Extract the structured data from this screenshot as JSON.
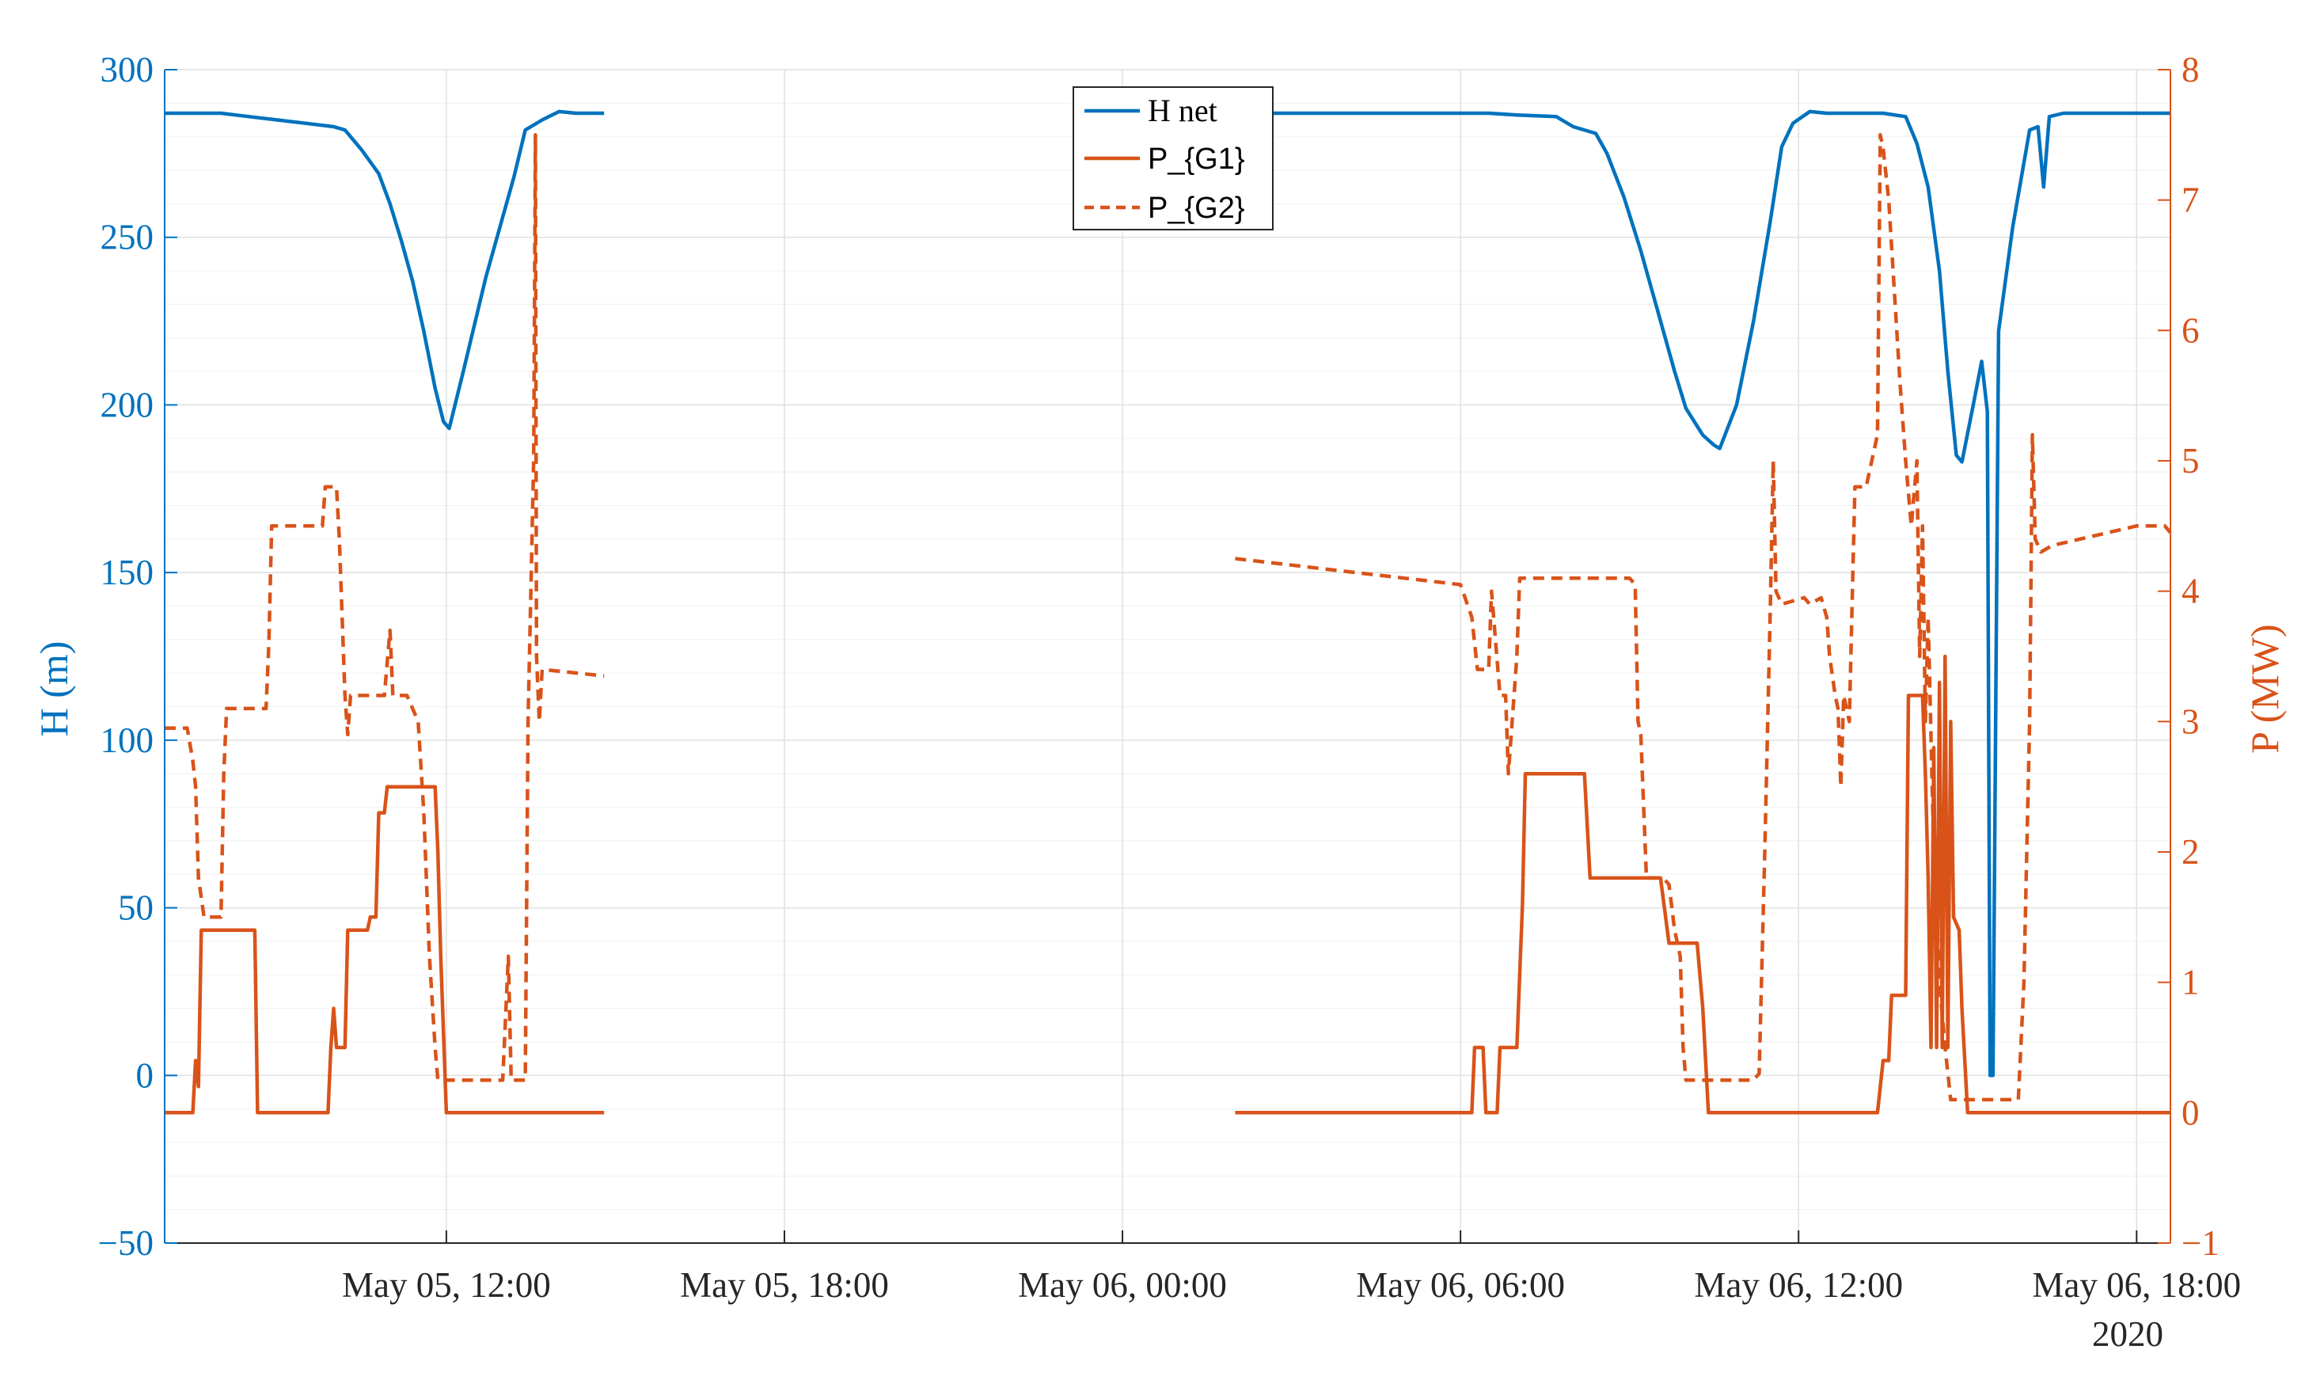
{
  "chart_data": {
    "type": "line",
    "ylabel_left": "H (m)",
    "ylabel_right": "P (MW)",
    "x_year_label": "2020",
    "grid": true,
    "legend_position": "top-center",
    "colors": {
      "left": "#0072BD",
      "right": "#D95319",
      "x": "#262626"
    },
    "xlim": [
      "2020-05-05 07:00",
      "2020-05-06 18:00"
    ],
    "ylim_left": [
      -50,
      300
    ],
    "ylim_right": [
      -1,
      8
    ],
    "x_ticks": [
      "May 05, 12:00",
      "May 05, 18:00",
      "May 06, 00:00",
      "May 06, 06:00",
      "May 06, 12:00",
      "May 06, 18:00"
    ],
    "x_tick_hours": [
      5,
      11,
      17,
      23,
      29,
      35
    ],
    "y_ticks_left": [
      "300",
      "250",
      "200",
      "150",
      "100",
      "50",
      "0",
      "−50"
    ],
    "y_ticks_left_values": [
      300,
      250,
      200,
      150,
      100,
      50,
      0,
      -50
    ],
    "y_ticks_right": [
      "8",
      "7",
      "6",
      "5",
      "4",
      "3",
      "2",
      "1",
      "0",
      "−1"
    ],
    "y_ticks_right_values": [
      8,
      7,
      6,
      5,
      4,
      3,
      2,
      1,
      0,
      -1
    ],
    "series": [
      {
        "name": "H net",
        "axis": "left",
        "style": "solid",
        "color": "#0072BD",
        "segments": [
          [
            [
              0,
              287
            ],
            [
              0.5,
              287
            ],
            [
              1.0,
              287
            ],
            [
              1.5,
              286
            ],
            [
              2.0,
              285
            ],
            [
              2.5,
              284
            ],
            [
              3.0,
              283
            ],
            [
              3.2,
              282
            ],
            [
              3.5,
              276
            ],
            [
              3.8,
              269
            ],
            [
              4.0,
              260
            ],
            [
              4.2,
              249
            ],
            [
              4.4,
              237
            ],
            [
              4.6,
              222
            ],
            [
              4.8,
              205
            ],
            [
              4.95,
              195
            ],
            [
              5.05,
              193
            ],
            [
              5.3,
              210
            ],
            [
              5.7,
              238
            ],
            [
              6.2,
              268
            ],
            [
              6.4,
              282
            ],
            [
              6.7,
              285
            ],
            [
              7.0,
              287.5
            ],
            [
              7.3,
              287
            ],
            [
              7.8,
              287
            ]
          ],
          [
            [
              19.2,
              287
            ],
            [
              20,
              287
            ],
            [
              21,
              287
            ],
            [
              22,
              287
            ],
            [
              23,
              287
            ],
            [
              23.5,
              287
            ],
            [
              24,
              286.5
            ],
            [
              24.7,
              286
            ],
            [
              25.0,
              283
            ],
            [
              25.4,
              281
            ],
            [
              25.6,
              275
            ],
            [
              25.9,
              262
            ],
            [
              26.2,
              246
            ],
            [
              26.5,
              228
            ],
            [
              26.8,
              210
            ],
            [
              27.0,
              199
            ],
            [
              27.3,
              191
            ],
            [
              27.5,
              188
            ],
            [
              27.6,
              187
            ],
            [
              27.9,
              200
            ],
            [
              28.2,
              225
            ],
            [
              28.5,
              255
            ],
            [
              28.7,
              277
            ],
            [
              28.9,
              284
            ],
            [
              29.2,
              287.5
            ],
            [
              29.5,
              287
            ],
            [
              29.8,
              287
            ],
            [
              30.5,
              287
            ],
            [
              30.9,
              286
            ],
            [
              31.1,
              278
            ],
            [
              31.3,
              265
            ],
            [
              31.5,
              240
            ],
            [
              31.65,
              210
            ],
            [
              31.8,
              185
            ],
            [
              31.9,
              183
            ],
            [
              32.1,
              200
            ],
            [
              32.25,
              213
            ],
            [
              32.35,
              198
            ],
            [
              32.4,
              0
            ],
            [
              32.45,
              0
            ],
            [
              32.55,
              222
            ],
            [
              32.8,
              253
            ],
            [
              33.1,
              282
            ],
            [
              33.25,
              283
            ],
            [
              33.35,
              265
            ],
            [
              33.45,
              286
            ],
            [
              33.7,
              287
            ],
            [
              34.5,
              287
            ],
            [
              35.6,
              287
            ]
          ]
        ]
      },
      {
        "name": "P_{G1}",
        "axis": "right",
        "style": "solid",
        "color": "#D95319",
        "segments": [
          [
            [
              0,
              0
            ],
            [
              0.5,
              0
            ],
            [
              0.55,
              0.4
            ],
            [
              0.6,
              0.2
            ],
            [
              0.65,
              1.4
            ],
            [
              1.6,
              1.4
            ],
            [
              1.65,
              0
            ],
            [
              2.9,
              0
            ],
            [
              2.95,
              0.5
            ],
            [
              3.0,
              0.8
            ],
            [
              3.05,
              0.5
            ],
            [
              3.2,
              0.5
            ],
            [
              3.25,
              1.4
            ],
            [
              3.6,
              1.4
            ],
            [
              3.65,
              1.5
            ],
            [
              3.75,
              1.5
            ],
            [
              3.8,
              2.3
            ],
            [
              3.9,
              2.3
            ],
            [
              3.95,
              2.5
            ],
            [
              4.8,
              2.5
            ],
            [
              4.85,
              2.0
            ],
            [
              4.9,
              1.2
            ],
            [
              5.0,
              0
            ],
            [
              7.8,
              0
            ]
          ],
          [
            [
              19.0,
              0
            ],
            [
              23.2,
              0
            ],
            [
              23.25,
              0.5
            ],
            [
              23.4,
              0.5
            ],
            [
              23.45,
              0
            ],
            [
              23.65,
              0
            ],
            [
              23.7,
              0.5
            ],
            [
              24.0,
              0.5
            ],
            [
              24.1,
              1.6
            ],
            [
              24.15,
              2.6
            ],
            [
              25.2,
              2.6
            ],
            [
              25.3,
              1.8
            ],
            [
              26.5,
              1.8
            ],
            [
              26.55,
              1.8
            ],
            [
              26.7,
              1.3
            ],
            [
              27.2,
              1.3
            ],
            [
              27.3,
              0.8
            ],
            [
              27.4,
              0
            ],
            [
              30.4,
              0
            ],
            [
              30.5,
              0.4
            ],
            [
              30.6,
              0.4
            ],
            [
              30.65,
              0.9
            ],
            [
              30.9,
              0.9
            ],
            [
              30.95,
              3.2
            ],
            [
              31.2,
              3.2
            ],
            [
              31.25,
              2.6
            ],
            [
              31.3,
              1.8
            ],
            [
              31.35,
              0.5
            ],
            [
              31.4,
              2.8
            ],
            [
              31.45,
              0.5
            ],
            [
              31.5,
              3.3
            ],
            [
              31.55,
              0.5
            ],
            [
              31.6,
              3.5
            ],
            [
              31.65,
              0.5
            ],
            [
              31.7,
              3.0
            ],
            [
              31.75,
              1.5
            ],
            [
              31.85,
              1.4
            ],
            [
              31.9,
              0.8
            ],
            [
              32.0,
              0
            ],
            [
              35.6,
              0
            ]
          ]
        ]
      },
      {
        "name": "P_{G2}",
        "axis": "right",
        "style": "dashed",
        "color": "#D95319",
        "segments": [
          [
            [
              0,
              2.95
            ],
            [
              0.4,
              2.95
            ],
            [
              0.5,
              2.7
            ],
            [
              0.55,
              2.5
            ],
            [
              0.6,
              1.8
            ],
            [
              0.7,
              1.5
            ],
            [
              1.0,
              1.5
            ],
            [
              1.05,
              2.6
            ],
            [
              1.1,
              3.1
            ],
            [
              1.8,
              3.1
            ],
            [
              1.85,
              3.6
            ],
            [
              1.9,
              4.5
            ],
            [
              2.8,
              4.5
            ],
            [
              2.85,
              4.8
            ],
            [
              3.05,
              4.8
            ],
            [
              3.1,
              4.4
            ],
            [
              3.2,
              3.2
            ],
            [
              3.25,
              2.9
            ],
            [
              3.3,
              3.2
            ],
            [
              3.9,
              3.2
            ],
            [
              4.0,
              3.7
            ],
            [
              4.05,
              3.2
            ],
            [
              4.3,
              3.2
            ],
            [
              4.5,
              3.0
            ],
            [
              4.6,
              2.3
            ],
            [
              4.7,
              1.2
            ],
            [
              4.8,
              0.5
            ],
            [
              4.85,
              0.25
            ],
            [
              5.5,
              0.25
            ],
            [
              6.0,
              0.25
            ],
            [
              6.1,
              1.2
            ],
            [
              6.15,
              0.25
            ],
            [
              6.4,
              0.25
            ],
            [
              6.45,
              3.0
            ],
            [
              6.55,
              5.0
            ],
            [
              6.58,
              7.5
            ],
            [
              6.6,
              3.5
            ],
            [
              6.65,
              3.0
            ],
            [
              6.7,
              3.4
            ],
            [
              7.8,
              3.35
            ]
          ],
          [
            [
              19.0,
              4.25
            ],
            [
              20,
              4.2
            ],
            [
              21,
              4.15
            ],
            [
              22,
              4.1
            ],
            [
              23,
              4.05
            ],
            [
              23.2,
              3.8
            ],
            [
              23.3,
              3.4
            ],
            [
              23.5,
              3.4
            ],
            [
              23.55,
              4.0
            ],
            [
              23.7,
              3.2
            ],
            [
              23.8,
              3.2
            ],
            [
              23.85,
              2.6
            ],
            [
              23.9,
              2.9
            ],
            [
              24.0,
              3.5
            ],
            [
              24.05,
              4.1
            ],
            [
              25.2,
              4.1
            ],
            [
              25.3,
              4.1
            ],
            [
              26.0,
              4.1
            ],
            [
              26.1,
              4.05
            ],
            [
              26.15,
              3.0
            ],
            [
              26.2,
              2.9
            ],
            [
              26.3,
              1.8
            ],
            [
              26.6,
              1.8
            ],
            [
              26.7,
              1.75
            ],
            [
              26.8,
              1.4
            ],
            [
              26.9,
              1.2
            ],
            [
              26.95,
              0.5
            ],
            [
              27.0,
              0.25
            ],
            [
              28.2,
              0.25
            ],
            [
              28.3,
              0.3
            ],
            [
              28.4,
              2.0
            ],
            [
              28.5,
              3.9
            ],
            [
              28.55,
              5.0
            ],
            [
              28.6,
              4.0
            ],
            [
              28.7,
              3.9
            ],
            [
              29.1,
              3.95
            ],
            [
              29.2,
              3.9
            ],
            [
              29.4,
              3.95
            ],
            [
              29.5,
              3.8
            ],
            [
              29.55,
              3.5
            ],
            [
              29.65,
              3.2
            ],
            [
              29.7,
              3.1
            ],
            [
              29.75,
              2.5
            ],
            [
              29.8,
              3.2
            ],
            [
              29.9,
              3.0
            ],
            [
              30.0,
              4.8
            ],
            [
              30.2,
              4.8
            ],
            [
              30.3,
              5.0
            ],
            [
              30.4,
              5.2
            ],
            [
              30.45,
              7.5
            ],
            [
              30.5,
              7.4
            ],
            [
              30.6,
              7.0
            ],
            [
              30.7,
              6.3
            ],
            [
              30.8,
              5.6
            ],
            [
              30.9,
              5.0
            ],
            [
              31.0,
              4.5
            ],
            [
              31.1,
              5.0
            ],
            [
              31.15,
              3.5
            ],
            [
              31.2,
              4.5
            ],
            [
              31.25,
              3.0
            ],
            [
              31.3,
              3.8
            ],
            [
              31.4,
              2.0
            ],
            [
              31.5,
              1.0
            ],
            [
              31.6,
              0.5
            ],
            [
              31.7,
              0.1
            ],
            [
              32.9,
              0.1
            ],
            [
              33.0,
              1.0
            ],
            [
              33.1,
              3.0
            ],
            [
              33.15,
              5.2
            ],
            [
              33.2,
              4.4
            ],
            [
              33.3,
              4.3
            ],
            [
              33.5,
              4.35
            ],
            [
              34,
              4.4
            ],
            [
              35,
              4.5
            ],
            [
              35.5,
              4.5
            ],
            [
              35.6,
              4.45
            ]
          ]
        ]
      }
    ]
  },
  "legend": {
    "items": [
      {
        "label": "H net",
        "style": "solid",
        "color": "#0072BD"
      },
      {
        "label": "P_{G1}",
        "style": "solid",
        "color": "#D95319"
      },
      {
        "label": "P_{G2}",
        "style": "dashed",
        "color": "#D95319"
      }
    ]
  }
}
